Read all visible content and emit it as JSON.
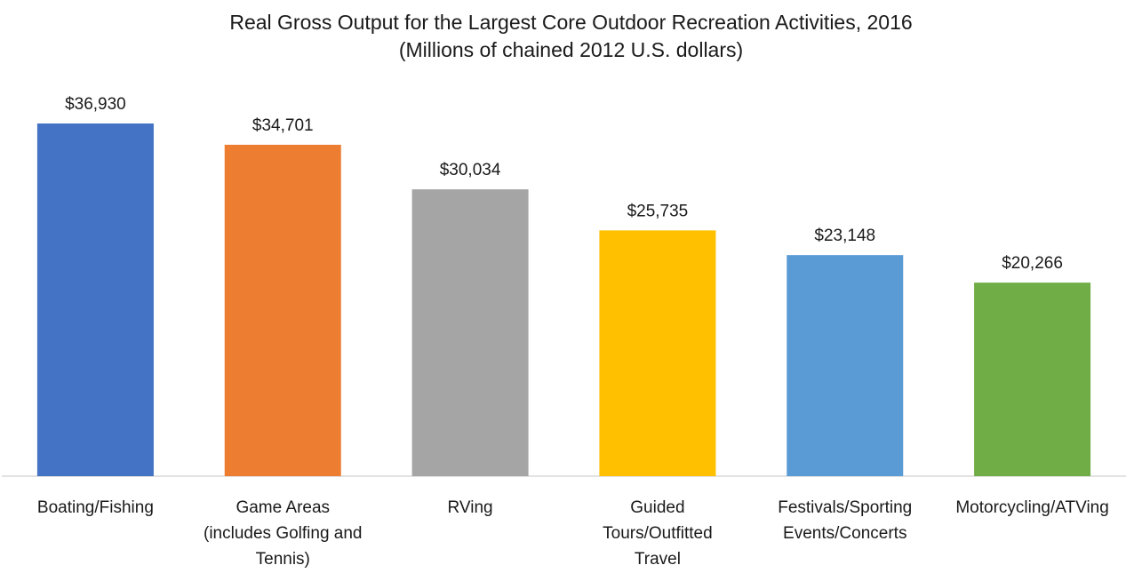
{
  "chart_data": {
    "type": "bar",
    "title": "Real Gross Output for the Largest Core Outdoor Recreation Activities, 2016",
    "subtitle": "(Millions of chained 2012 U.S. dollars)",
    "categories": [
      "Boating/Fishing",
      "Game Areas (includes Golfing and Tennis)",
      "RVing",
      "Guided Tours/Outfitted Travel",
      "Festivals/Sporting Events/Concerts",
      "Motorcycling/ATVing"
    ],
    "category_lines": [
      [
        "Boating/Fishing"
      ],
      [
        "Game Areas",
        "(includes Golfing and",
        "Tennis)"
      ],
      [
        "RVing"
      ],
      [
        "Guided",
        "Tours/Outfitted",
        "Travel"
      ],
      [
        "Festivals/Sporting",
        "Events/Concerts"
      ],
      [
        "Motorcycling/ATVing"
      ]
    ],
    "values": [
      36930,
      34701,
      30034,
      25735,
      23148,
      20266
    ],
    "data_labels": [
      "$36,930",
      "$34,701",
      "$30,034",
      "$25,735",
      "$23,148",
      "$20,266"
    ],
    "colors": [
      "#4472c4",
      "#ed7d31",
      "#a5a5a5",
      "#ffc000",
      "#5b9bd5",
      "#70ad47"
    ],
    "xlabel": "",
    "ylabel": "",
    "ylim": [
      0,
      40000
    ],
    "grid": false,
    "legend": "none"
  }
}
